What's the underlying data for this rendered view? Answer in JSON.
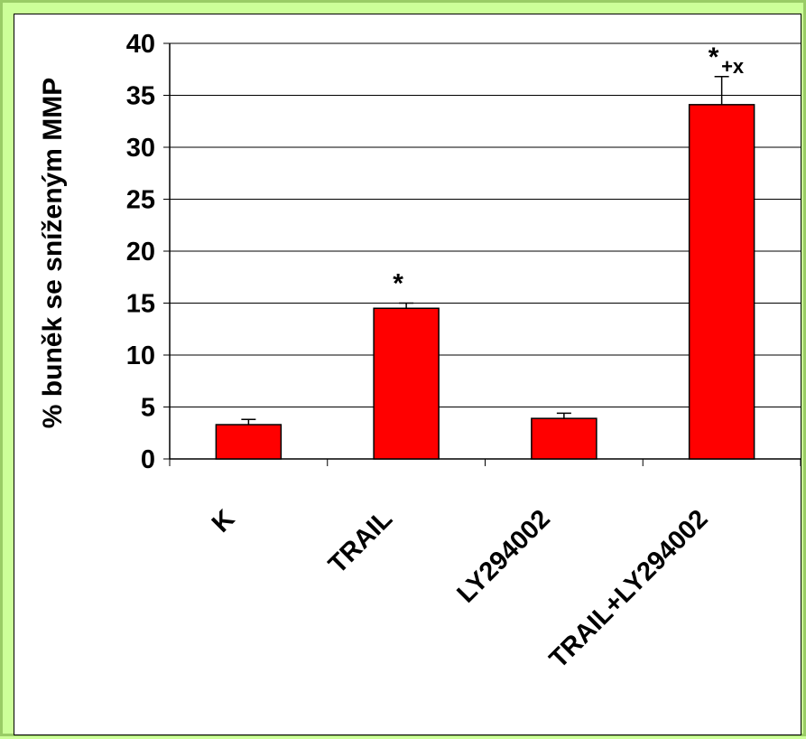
{
  "chart_data": {
    "type": "bar",
    "categories": [
      "K",
      "TRAIL",
      "LY294002",
      "TRAIL+LY294002"
    ],
    "values": [
      3.3,
      14.5,
      3.9,
      34.1
    ],
    "errors": [
      0.5,
      0.5,
      0.5,
      2.7
    ],
    "annotations": [
      "",
      "*",
      "",
      "*"
    ],
    "annotations_sub": [
      "",
      "",
      "",
      "+x"
    ],
    "ylabel": "% buněk se sníženým MMP",
    "ylim": [
      0,
      40
    ],
    "yticks": [
      0,
      5,
      10,
      15,
      20,
      25,
      30,
      35,
      40
    ],
    "grid": true,
    "bar_color": "#ff0000"
  }
}
